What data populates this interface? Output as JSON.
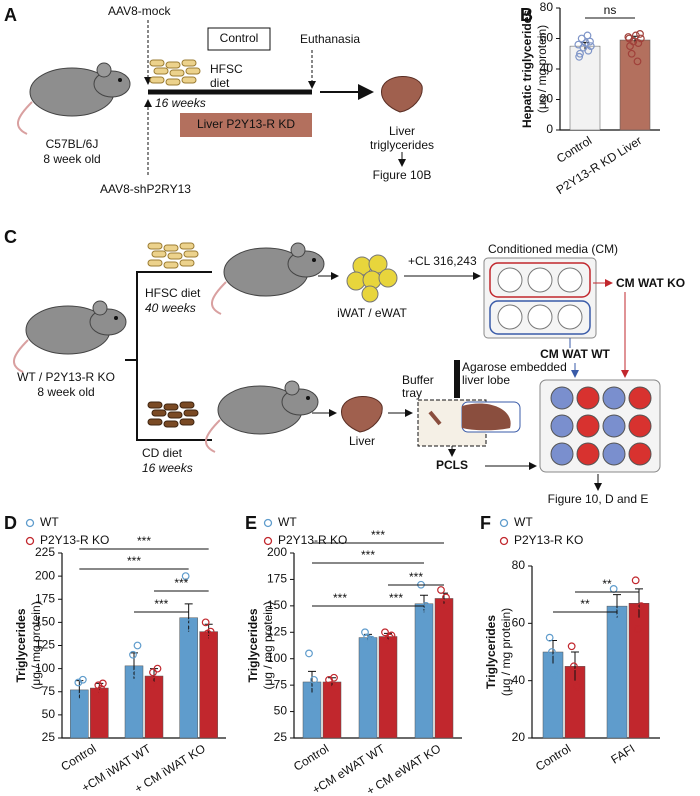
{
  "panel_labels": [
    "A",
    "B",
    "C",
    "D",
    "E",
    "F"
  ],
  "schematic_a": {
    "top_vector": "AAV8-mock",
    "control": "Control",
    "diet": [
      "HFSC",
      "diet"
    ],
    "euthanasia": "Euthanasia",
    "duration": "16 weeks",
    "kd_box": "Liver P2Y13-R KD",
    "mouse": [
      "C57BL/6J",
      "8 week old"
    ],
    "bottom_vector": "AAV8-shP2RY13",
    "readout": [
      "Liver",
      "triglycerides"
    ],
    "figure_ref": "Figure 10B"
  },
  "schematic_c": {
    "mouse": [
      "WT / P2Y13-R KO",
      "8 week old"
    ],
    "hfsc": [
      "HFSC diet",
      "40 weeks"
    ],
    "cd": [
      "CD diet",
      "16 weeks"
    ],
    "fat": "iWAT / eWAT",
    "treatment": "+CL 316,243",
    "cm": "Conditioned media (CM)",
    "cm_ko": "CM WAT KO",
    "cm_wt": "CM WAT WT",
    "liver": "Liver",
    "tray": [
      "Buffer",
      "tray"
    ],
    "lobe": [
      "Agarose embedded",
      "liver lobe"
    ],
    "pcls": "PCLS",
    "figure_ref": "Figure 10, D and E"
  },
  "chart_data": [
    {
      "type": "bar",
      "y_label": [
        "Hepatic triglycerides",
        "(μg / mg protein)"
      ],
      "categories": [
        "Control",
        "P2Y13-R KD Liver"
      ],
      "values": [
        55,
        59
      ],
      "errors": [
        2.5,
        2.5
      ],
      "colors": [
        "#f2f2f2",
        "#b3705e"
      ],
      "point_colors": [
        "#7f95c8",
        "#a0403a"
      ],
      "points": [
        [
          50,
          52,
          54,
          55,
          56,
          57,
          58,
          60,
          62,
          48
        ],
        [
          55,
          57,
          58,
          60,
          61,
          62,
          63,
          50,
          45,
          60
        ]
      ],
      "ylim": [
        0,
        80
      ],
      "yticks": [
        0,
        20,
        40,
        60,
        80
      ],
      "annotations": [
        "ns"
      ]
    },
    {
      "type": "bar",
      "y_label": [
        "Triglycerides",
        "(μg / mg protein)"
      ],
      "categories": [
        "Control",
        "+CM iWAT WT",
        "+ CM iWAT KO"
      ],
      "series": [
        {
          "name": "WT",
          "color": "#5f9ccc",
          "values": [
            77,
            103,
            155
          ],
          "errors": [
            10,
            14,
            15
          ],
          "points": [
            [
              65,
              70,
              85,
              88
            ],
            [
              80,
              95,
              115,
              125
            ],
            [
              200,
              150,
              145,
              135
            ]
          ]
        },
        {
          "name": "P2Y13-R KO",
          "color": "#c1272d",
          "values": [
            79,
            92,
            140
          ],
          "errors": [
            5,
            8,
            8
          ],
          "points": [
            [
              75,
              78,
              82,
              84
            ],
            [
              83,
              88,
              96,
              100
            ],
            [
              150,
              140,
              138,
              132
            ]
          ]
        }
      ],
      "ylim": [
        25,
        225
      ],
      "yticks": [
        25,
        50,
        75,
        100,
        125,
        150,
        175,
        200,
        225
      ],
      "annotations": [
        "***",
        "***",
        "***",
        "***"
      ]
    },
    {
      "type": "bar",
      "y_label": [
        "Triglycerides",
        "(μg / mg protein)"
      ],
      "categories": [
        "Control",
        "+CM eWAT WT",
        "+ CM eWAT KO"
      ],
      "series": [
        {
          "name": "WT",
          "color": "#5f9ccc",
          "values": [
            78,
            120,
            152
          ],
          "errors": [
            10,
            3,
            8
          ],
          "points": [
            [
              105,
              80,
              70,
              60
            ],
            [
              125,
              118,
              120,
              118
            ],
            [
              170,
              150,
              148,
              140
            ]
          ]
        },
        {
          "name": "P2Y13-R KO",
          "color": "#c1272d",
          "values": [
            78,
            121,
            157
          ],
          "errors": [
            4,
            3,
            5
          ],
          "points": [
            [
              80,
              82,
              75,
              73
            ],
            [
              125,
              120,
              118,
              122
            ],
            [
              165,
              158,
              152,
              150
            ]
          ]
        }
      ],
      "ylim": [
        25,
        200
      ],
      "yticks": [
        25,
        50,
        75,
        100,
        125,
        150,
        175,
        200
      ],
      "annotations": [
        "***",
        "***",
        "***",
        "***",
        "***"
      ]
    },
    {
      "type": "bar",
      "y_label": [
        "Triglycerides",
        "(μg / mg protein)"
      ],
      "categories": [
        "Control",
        "FAFI"
      ],
      "series": [
        {
          "name": "WT",
          "color": "#5f9ccc",
          "values": [
            50,
            66
          ],
          "errors": [
            4,
            4
          ],
          "points": [
            [
              55,
              42,
              50
            ],
            [
              72,
              62,
              64
            ]
          ]
        },
        {
          "name": "P2Y13-R KO",
          "color": "#c1272d",
          "values": [
            45,
            67
          ],
          "errors": [
            5,
            5
          ],
          "points": [
            [
              52,
              38,
              45
            ],
            [
              75,
              66,
              58
            ]
          ]
        }
      ],
      "ylim": [
        20,
        80
      ],
      "yticks": [
        20,
        40,
        60,
        80
      ],
      "annotations": [
        "**",
        "**"
      ]
    }
  ]
}
